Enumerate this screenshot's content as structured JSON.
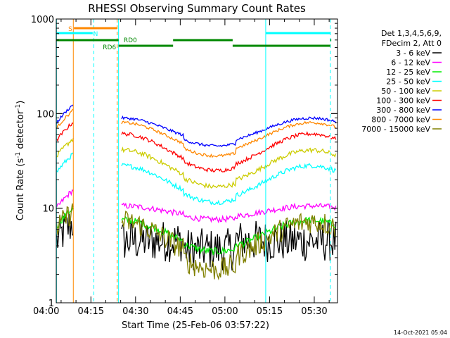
{
  "chart_data": {
    "type": "line",
    "title": "RHESSI Observing Summary Count Rates",
    "xlabel": "Start Time (25-Feb-06 03:57:22)",
    "ylabel_main": "Count Rate (s",
    "ylabel_sup1": "-1",
    "ylabel_mid": " detector",
    "ylabel_sup2": "-1",
    "ylabel_end": ")",
    "yscale": "log",
    "ylim": [
      1,
      1000
    ],
    "y_ticks": [
      {
        "value": 1,
        "label": "1"
      },
      {
        "value": 10,
        "label": "10"
      },
      {
        "value": 100,
        "label": "100"
      },
      {
        "value": 1000,
        "label": "1000"
      }
    ],
    "xlim_minutes": [
      3.37,
      97.8
    ],
    "x_ticks": [
      {
        "minute": 0,
        "label": "04:00"
      },
      {
        "minute": 15,
        "label": "04:15"
      },
      {
        "minute": 30,
        "label": "04:30"
      },
      {
        "minute": 45,
        "label": "04:45"
      },
      {
        "minute": 60,
        "label": "05:00"
      },
      {
        "minute": 75,
        "label": "05:15"
      },
      {
        "minute": 90,
        "label": "05:30"
      }
    ],
    "legend_header": [
      "Det 1,3,4,5,6,9,",
      "FDecim 2, Att 0"
    ],
    "series": [
      {
        "name": "3 - 6 keV",
        "color": "#000000"
      },
      {
        "name": "6 - 12 keV",
        "color": "#ff00ff"
      },
      {
        "name": "12 - 25 keV",
        "color": "#00ee00"
      },
      {
        "name": "25 - 50 keV",
        "color": "#00ffff"
      },
      {
        "name": "50 - 100 keV",
        "color": "#cccc00"
      },
      {
        "name": "100 - 300 keV",
        "color": "#ff0000"
      },
      {
        "name": "300 - 800 keV",
        "color": "#0000ff"
      },
      {
        "name": "800 - 7000 keV",
        "color": "#ff8800"
      },
      {
        "name": "7000 - 15000 keV",
        "color": "#808000"
      }
    ],
    "flags": [
      {
        "label": "S",
        "color": "#ff8800"
      },
      {
        "label": "N",
        "color": "#00ffff"
      },
      {
        "label": "RD0",
        "color": "#008800"
      },
      {
        "label": "RD6",
        "color": "#008800"
      }
    ],
    "timestamp": "14-Oct-2021 05:04"
  }
}
